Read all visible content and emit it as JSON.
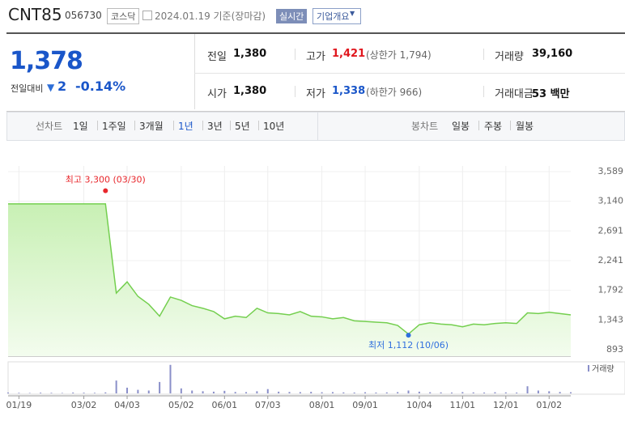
{
  "header": {
    "name": "CNT85",
    "code": "056730",
    "market": "코스닥",
    "date": "2024.01.19 기준(장마감)",
    "realtime": "실시간",
    "overview": "기업개요"
  },
  "quote": {
    "price": "1,378",
    "change_label": "전일대비",
    "change": "2",
    "change_rate": "-0.14%",
    "rows": [
      [
        {
          "label": "전일",
          "value": "1,380"
        },
        {
          "label": "고가",
          "value": "1,421",
          "extra": "(상한가 1,794)"
        },
        {
          "label": "거래량",
          "value": "39,160"
        }
      ],
      [
        {
          "label": "시가",
          "value": "1,380"
        },
        {
          "label": "저가",
          "value": "1,338",
          "extra": "(하한가 966)"
        },
        {
          "label": "거래대금",
          "value": "53 백만"
        }
      ]
    ]
  },
  "tabs": {
    "line_label": "선차트",
    "line_items": [
      "1일",
      "1주일",
      "3개월",
      "1년",
      "3년",
      "5년",
      "10년"
    ],
    "candle_label": "봉차트",
    "candle_items": [
      "일봉",
      "주봉",
      "월봉"
    ]
  },
  "chart_data": {
    "type": "line",
    "categories": [
      null,
      "01/19",
      null,
      null,
      null,
      null,
      null,
      "03/02",
      null,
      null,
      null,
      "04/03",
      null,
      null,
      null,
      null,
      "05/02",
      null,
      null,
      null,
      "06/01",
      null,
      null,
      null,
      "07/03",
      null,
      null,
      null,
      null,
      "08/01",
      null,
      null,
      null,
      "09/01",
      null,
      null,
      null,
      null,
      "10/04",
      null,
      null,
      null,
      "11/01",
      null,
      null,
      null,
      "12/01",
      null,
      null,
      null,
      "01/02",
      null,
      null
    ],
    "values": [
      3100,
      3100,
      3100,
      3100,
      3100,
      3100,
      3100,
      3100,
      3100,
      3100,
      1750,
      1920,
      1700,
      1580,
      1400,
      1690,
      1640,
      1560,
      1520,
      1470,
      1360,
      1400,
      1380,
      1520,
      1450,
      1440,
      1420,
      1470,
      1400,
      1390,
      1360,
      1380,
      1330,
      1320,
      1310,
      1300,
      1260,
      1130,
      1270,
      1300,
      1280,
      1270,
      1240,
      1280,
      1270,
      1290,
      1300,
      1290,
      1450,
      1440,
      1460,
      1440,
      1420
    ],
    "color": "#74cf4f",
    "ylim": [
      893,
      3589
    ],
    "yticks": [
      {
        "value": 893,
        "label": "893"
      },
      {
        "value": 1343,
        "label": "1,343"
      },
      {
        "value": 1792,
        "label": "1,792"
      },
      {
        "value": 2241,
        "label": "2,241"
      },
      {
        "value": 2691,
        "label": "2,691"
      },
      {
        "value": 3140,
        "label": "3,140"
      },
      {
        "value": 3589,
        "label": "3,589"
      }
    ],
    "annotations": [
      {
        "label": "최고 3,300 (03/30)",
        "value": 3300,
        "color": "#e8272c"
      },
      {
        "label": "최저 1,112 (10/06)",
        "value": 1112,
        "color": "#2f6fde"
      }
    ],
    "volume": {
      "label": "거래량",
      "color": "#8a8fc9",
      "ylim": [
        0,
        2100000
      ],
      "values": [
        60000,
        40000,
        30000,
        50000,
        40000,
        30000,
        60000,
        50000,
        40000,
        70000,
        900000,
        400000,
        250000,
        200000,
        800000,
        2000000,
        350000,
        200000,
        150000,
        120000,
        180000,
        100000,
        90000,
        150000,
        300000,
        120000,
        100000,
        90000,
        110000,
        80000,
        90000,
        70000,
        60000,
        80000,
        60000,
        70000,
        90000,
        200000,
        120000,
        80000,
        70000,
        60000,
        90000,
        70000,
        60000,
        80000,
        70000,
        60000,
        500000,
        200000,
        150000,
        100000,
        80000
      ]
    }
  }
}
